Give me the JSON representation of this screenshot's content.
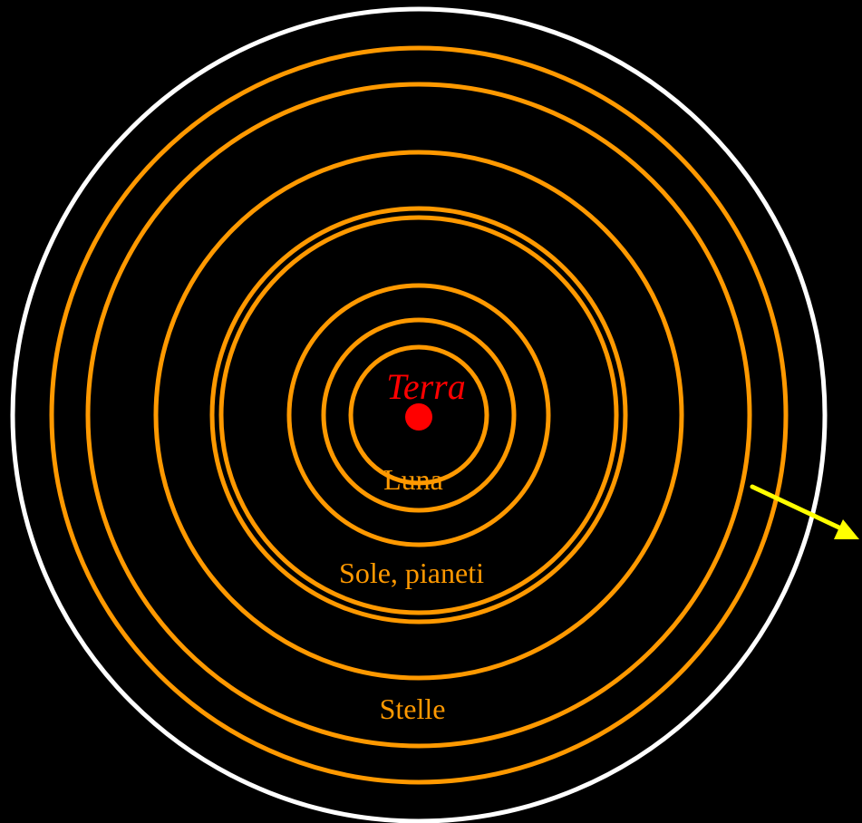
{
  "diagram": {
    "labels": {
      "center": "Terra",
      "moon_sphere": "Luna",
      "sun_planets_sphere": "Sole, pianeti",
      "stars_sphere": "Stelle"
    },
    "colors": {
      "background": "#000000",
      "outer_sphere": "#ffffff",
      "spheres": "#ff9900",
      "earth": "#ff0000",
      "arrow": "#ffff00",
      "label_text": "#ff9900",
      "earth_label": "#ff0000"
    },
    "sphere_count": 8
  }
}
